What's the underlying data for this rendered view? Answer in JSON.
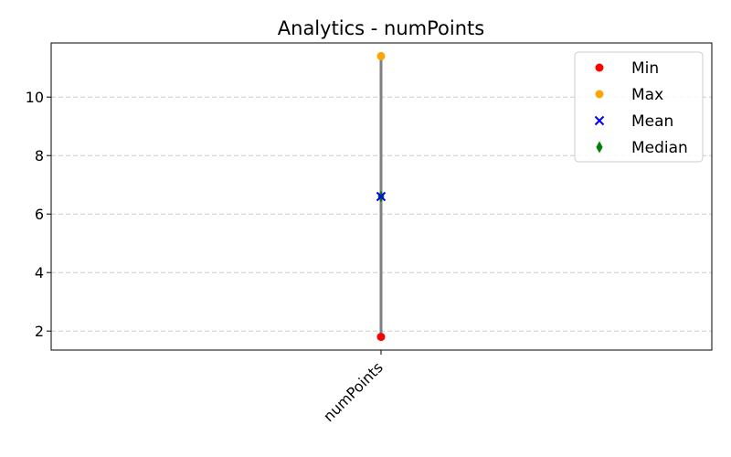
{
  "chart_data": {
    "type": "scatter",
    "title": "Analytics - numPoints",
    "categories": [
      "numPoints"
    ],
    "xlabel": "",
    "ylabel": "",
    "ylim": [
      1.35,
      11.85
    ],
    "yticks": [
      2,
      4,
      6,
      8,
      10
    ],
    "grid": "y-dashed",
    "legend_position": "top-right",
    "range_line_color": "#808080",
    "series": [
      {
        "name": "Min",
        "marker": "circle",
        "color": "#ff0000",
        "values": [
          1.8
        ]
      },
      {
        "name": "Max",
        "marker": "circle",
        "color": "#ffa500",
        "values": [
          11.4
        ]
      },
      {
        "name": "Mean",
        "marker": "x",
        "color": "#0000ff",
        "values": [
          6.6
        ]
      },
      {
        "name": "Median",
        "marker": "diamond",
        "color": "#008000",
        "values": [
          6.6
        ]
      }
    ]
  }
}
